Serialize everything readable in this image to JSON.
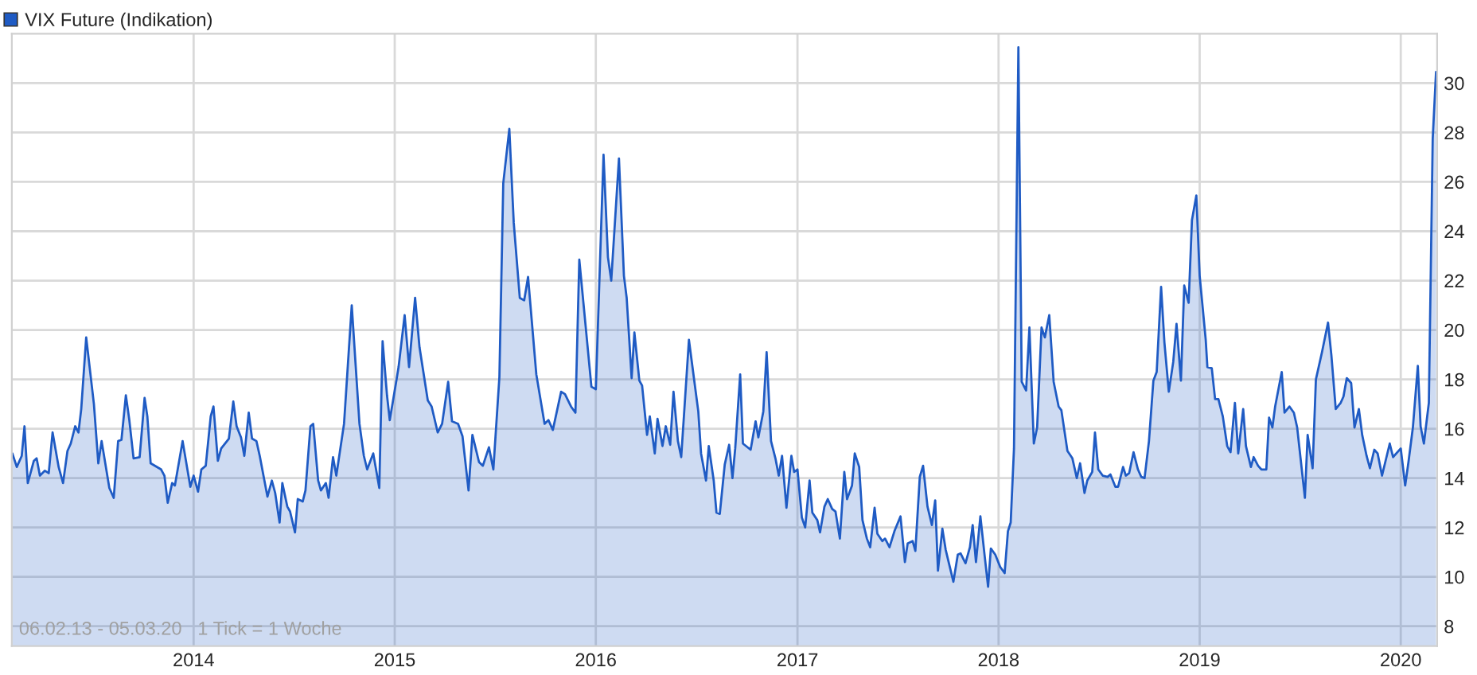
{
  "chart_data": {
    "type": "area",
    "series": [
      {
        "name": "VIX Future (Indikation)",
        "color": "#1f5bc4",
        "x": [
          "2013-02-06",
          "2013-02-14",
          "2013-02-23",
          "2013-02-28",
          "2013-03-06",
          "2013-03-17",
          "2013-03-22",
          "2013-03-28",
          "2013-04-06",
          "2013-04-13",
          "2013-04-20",
          "2013-05-01",
          "2013-05-09",
          "2013-05-17",
          "2013-05-23",
          "2013-05-31",
          "2013-06-06",
          "2013-06-11",
          "2013-06-20",
          "2013-07-04",
          "2013-07-12",
          "2013-07-18",
          "2013-08-01",
          "2013-08-09",
          "2013-08-17",
          "2013-08-23",
          "2013-08-31",
          "2013-09-06",
          "2013-09-14",
          "2013-09-25",
          "2013-10-04",
          "2013-10-09",
          "2013-10-15",
          "2013-11-03",
          "2013-11-09",
          "2013-11-15",
          "2013-11-23",
          "2013-11-28",
          "2013-12-12",
          "2013-12-26",
          "2014-01-01",
          "2014-01-09",
          "2014-01-15",
          "2014-01-23",
          "2014-02-01",
          "2014-02-06",
          "2014-02-14",
          "2014-02-20",
          "2014-03-06",
          "2014-03-14",
          "2014-03-20",
          "2014-03-28",
          "2014-04-03",
          "2014-04-11",
          "2014-04-17",
          "2014-04-25",
          "2014-05-01",
          "2014-05-15",
          "2014-05-23",
          "2014-05-29",
          "2014-06-06",
          "2014-06-11",
          "2014-06-20",
          "2014-06-25",
          "2014-07-04",
          "2014-07-09",
          "2014-07-18",
          "2014-07-23",
          "2014-08-01",
          "2014-08-06",
          "2014-08-15",
          "2014-08-20",
          "2014-08-29",
          "2014-09-03",
          "2014-09-11",
          "2014-09-17",
          "2014-10-01",
          "2014-10-15",
          "2014-10-29",
          "2014-11-06",
          "2014-11-12",
          "2014-11-23",
          "2014-12-04",
          "2014-12-10",
          "2014-12-18",
          "2014-12-23",
          "2015-01-04",
          "2015-01-08",
          "2015-01-19",
          "2015-01-27",
          "2015-02-07",
          "2015-02-15",
          "2015-03-02",
          "2015-03-09",
          "2015-03-20",
          "2015-03-28",
          "2015-04-08",
          "2015-04-15",
          "2015-04-26",
          "2015-05-04",
          "2015-05-15",
          "2015-05-22",
          "2015-06-03",
          "2015-06-10",
          "2015-06-21",
          "2015-06-29",
          "2015-07-10",
          "2015-07-17",
          "2015-07-28",
          "2015-08-05",
          "2015-08-16",
          "2015-08-24",
          "2015-08-31",
          "2015-09-15",
          "2015-09-30",
          "2015-10-07",
          "2015-10-15",
          "2015-10-30",
          "2015-11-06",
          "2015-11-17",
          "2015-11-25",
          "2015-12-02",
          "2015-12-24",
          "2016-01-01",
          "2016-01-15",
          "2016-01-23",
          "2016-01-29",
          "2016-02-12",
          "2016-02-21",
          "2016-02-26",
          "2016-03-06",
          "2016-03-11",
          "2016-03-20",
          "2016-03-25",
          "2016-04-03",
          "2016-04-08",
          "2016-04-17",
          "2016-04-22",
          "2016-05-01",
          "2016-05-07",
          "2016-05-15",
          "2016-05-21",
          "2016-05-29",
          "2016-06-04",
          "2016-06-18",
          "2016-07-05",
          "2016-07-10",
          "2016-07-19",
          "2016-07-24",
          "2016-08-02",
          "2016-08-07",
          "2016-08-13",
          "2016-08-22",
          "2016-08-30",
          "2016-09-05",
          "2016-09-10",
          "2016-09-19",
          "2016-09-24",
          "2016-10-08",
          "2016-10-17",
          "2016-10-22",
          "2016-10-31",
          "2016-11-06",
          "2016-11-14",
          "2016-11-22",
          "2016-11-28",
          "2016-12-04",
          "2016-12-12",
          "2016-12-21",
          "2016-12-26",
          "2017-01-01",
          "2017-01-09",
          "2017-01-15",
          "2017-01-23",
          "2017-01-28",
          "2017-02-06",
          "2017-02-11",
          "2017-02-19",
          "2017-02-25",
          "2017-03-05",
          "2017-03-11",
          "2017-03-19",
          "2017-03-27",
          "2017-04-01",
          "2017-04-10",
          "2017-04-15",
          "2017-04-23",
          "2017-04-29",
          "2017-05-07",
          "2017-05-13",
          "2017-05-21",
          "2017-05-26",
          "2017-06-04",
          "2017-06-09",
          "2017-06-17",
          "2017-06-26",
          "2017-07-07",
          "2017-07-15",
          "2017-07-20",
          "2017-07-29",
          "2017-08-03",
          "2017-08-11",
          "2017-08-17",
          "2017-08-25",
          "2017-09-02",
          "2017-09-08",
          "2017-09-13",
          "2017-09-21",
          "2017-09-27",
          "2017-10-11",
          "2017-10-19",
          "2017-10-24",
          "2017-11-02",
          "2017-11-10",
          "2017-11-15",
          "2017-11-21",
          "2017-11-29",
          "2017-12-07",
          "2017-12-13",
          "2017-12-18",
          "2017-12-26",
          "2018-01-04",
          "2018-01-12",
          "2018-01-18",
          "2018-01-23",
          "2018-01-29",
          "2018-02-06",
          "2018-02-12",
          "2018-02-20",
          "2018-02-26",
          "2018-03-06",
          "2018-03-12",
          "2018-03-20",
          "2018-03-26",
          "2018-04-03",
          "2018-04-11",
          "2018-04-20",
          "2018-04-25",
          "2018-05-06",
          "2018-05-15",
          "2018-05-23",
          "2018-05-29",
          "2018-06-06",
          "2018-06-11",
          "2018-06-20",
          "2018-06-25",
          "2018-07-01",
          "2018-07-09",
          "2018-07-18",
          "2018-07-23",
          "2018-08-01",
          "2018-08-06",
          "2018-08-15",
          "2018-08-20",
          "2018-08-26",
          "2018-09-03",
          "2018-09-11",
          "2018-09-17",
          "2018-09-23",
          "2018-10-01",
          "2018-10-09",
          "2018-10-15",
          "2018-10-23",
          "2018-10-29",
          "2018-11-06",
          "2018-11-14",
          "2018-11-20",
          "2018-11-28",
          "2018-12-04",
          "2018-12-12",
          "2018-12-18",
          "2018-12-26",
          "2019-01-01",
          "2019-01-12",
          "2019-01-15",
          "2019-01-23",
          "2019-01-29",
          "2019-02-04",
          "2019-02-12",
          "2019-02-20",
          "2019-02-26",
          "2019-03-06",
          "2019-03-12",
          "2019-03-21",
          "2019-03-26",
          "2019-04-04",
          "2019-04-09",
          "2019-04-17",
          "2019-04-23",
          "2019-05-02",
          "2019-05-07",
          "2019-05-13",
          "2019-05-18",
          "2019-05-30",
          "2019-06-04",
          "2019-06-13",
          "2019-06-21",
          "2019-06-27",
          "2019-07-11",
          "2019-07-16",
          "2019-07-25",
          "2019-07-31",
          "2019-08-11",
          "2019-08-22",
          "2019-08-28",
          "2019-09-05",
          "2019-09-14",
          "2019-09-19",
          "2019-09-25",
          "2019-10-03",
          "2019-10-09",
          "2019-10-17",
          "2019-10-23",
          "2019-10-31",
          "2019-11-06",
          "2019-11-14",
          "2019-11-20",
          "2019-11-28",
          "2019-12-12",
          "2019-12-18",
          "2020-01-01",
          "2020-01-09",
          "2020-01-15",
          "2020-01-23",
          "2020-02-01",
          "2020-02-06",
          "2020-02-12",
          "2020-02-21",
          "2020-02-28",
          "2020-03-05"
        ],
        "values": [
          15.0,
          14.45,
          14.9,
          16.1,
          13.8,
          14.7,
          14.8,
          14.1,
          14.3,
          14.2,
          15.85,
          14.45,
          13.8,
          15.1,
          15.4,
          16.1,
          15.85,
          16.8,
          19.7,
          17.0,
          14.6,
          15.5,
          13.6,
          13.2,
          15.5,
          15.55,
          17.35,
          16.4,
          14.8,
          14.85,
          17.25,
          16.5,
          14.6,
          14.35,
          14.1,
          13.0,
          13.8,
          13.7,
          15.5,
          13.65,
          14.1,
          13.45,
          14.35,
          14.5,
          16.5,
          16.9,
          14.7,
          15.2,
          15.6,
          17.1,
          16.1,
          15.65,
          14.9,
          16.65,
          15.6,
          15.5,
          14.9,
          13.25,
          13.9,
          13.4,
          12.2,
          13.8,
          12.85,
          12.65,
          11.8,
          13.15,
          13.05,
          13.5,
          16.1,
          16.2,
          13.9,
          13.5,
          13.8,
          13.2,
          14.85,
          14.1,
          16.2,
          21.0,
          16.2,
          14.9,
          14.35,
          15.0,
          13.6,
          19.55,
          17.35,
          16.35,
          17.95,
          18.5,
          20.6,
          18.5,
          21.3,
          19.3,
          17.15,
          16.9,
          15.85,
          16.2,
          17.9,
          16.3,
          16.2,
          15.7,
          13.5,
          15.75,
          14.65,
          14.5,
          15.25,
          14.35,
          18.1,
          25.95,
          28.15,
          24.35,
          21.3,
          21.2,
          22.15,
          18.2,
          16.2,
          16.35,
          15.95,
          17.5,
          17.4,
          16.9,
          16.65,
          22.85,
          17.7,
          17.6,
          27.1,
          22.95,
          22.0,
          26.95,
          22.2,
          21.3,
          18.05,
          19.9,
          17.95,
          17.75,
          15.75,
          16.5,
          15.0,
          16.4,
          15.3,
          16.1,
          15.35,
          17.5,
          15.5,
          14.85,
          19.6,
          16.7,
          15.0,
          13.9,
          15.3,
          13.9,
          12.6,
          12.55,
          14.55,
          15.35,
          14.0,
          15.2,
          18.2,
          15.4,
          15.15,
          16.3,
          15.65,
          16.7,
          19.1,
          15.5,
          14.8,
          14.1,
          14.9,
          12.8,
          14.9,
          14.25,
          14.35,
          12.4,
          12.0,
          13.9,
          12.6,
          12.3,
          11.8,
          12.85,
          13.15,
          12.75,
          12.65,
          11.55,
          14.25,
          13.15,
          13.7,
          15.0,
          14.45,
          12.3,
          11.55,
          11.2,
          12.8,
          11.75,
          11.45,
          11.55,
          11.2,
          11.85,
          12.45,
          10.6,
          11.35,
          11.45,
          11.05,
          14.05,
          14.5,
          12.85,
          12.1,
          13.1,
          10.25,
          11.95,
          11.1,
          9.8,
          10.9,
          10.95,
          10.55,
          11.2,
          12.1,
          10.6,
          12.45,
          10.8,
          9.6,
          11.15,
          10.9,
          10.4,
          10.15,
          11.85,
          12.2,
          15.2,
          31.45,
          17.9,
          17.55,
          20.1,
          15.4,
          16.05,
          20.1,
          19.7,
          20.6,
          17.9,
          16.9,
          16.75,
          15.1,
          14.8,
          14.0,
          14.6,
          13.4,
          13.9,
          14.25,
          15.85,
          14.35,
          14.1,
          14.05,
          14.15,
          13.65,
          13.65,
          14.45,
          14.1,
          14.2,
          15.05,
          14.35,
          14.05,
          14.0,
          15.5,
          17.95,
          18.3,
          21.75,
          19.5,
          17.5,
          18.7,
          20.25,
          17.95,
          21.8,
          21.1,
          24.45,
          25.45,
          22.2,
          19.6,
          18.5,
          18.45,
          17.2,
          17.2,
          16.5,
          15.3,
          15.05,
          17.05,
          15.0,
          16.8,
          15.3,
          14.45,
          14.85,
          14.5,
          14.35,
          14.35,
          16.45,
          16.05,
          16.9,
          18.3,
          16.65,
          16.9,
          16.65,
          16.05,
          13.2,
          15.75,
          14.4,
          18.0,
          19.1,
          20.3,
          19.0,
          16.8,
          17.05,
          17.3,
          18.05,
          17.85,
          16.05,
          16.8,
          15.75,
          14.9,
          14.4,
          15.15,
          15.0,
          14.1,
          15.4,
          14.85,
          15.2,
          13.7,
          14.65,
          16.05,
          18.55,
          16.1,
          15.4,
          17.05,
          27.75,
          30.45
        ]
      }
    ],
    "xlim": [
      "2013-02-05",
      "2020-03-07"
    ],
    "xticks": [
      {
        "value": "2014-01-01",
        "label": "2014"
      },
      {
        "value": "2015-01-01",
        "label": "2015"
      },
      {
        "value": "2016-01-01",
        "label": "2016"
      },
      {
        "value": "2017-01-01",
        "label": "2017"
      },
      {
        "value": "2018-01-01",
        "label": "2018"
      },
      {
        "value": "2019-01-01",
        "label": "2019"
      },
      {
        "value": "2020-01-01",
        "label": "2020"
      }
    ],
    "ylim": [
      7.2,
      32
    ],
    "yticks": [
      8,
      10,
      12,
      14,
      16,
      18,
      20,
      22,
      24,
      26,
      28,
      30
    ],
    "grid": true,
    "legend": "top left",
    "annotations": [
      "06.02.13 - 05.03.20   1 Tick = 1 Woche"
    ]
  }
}
